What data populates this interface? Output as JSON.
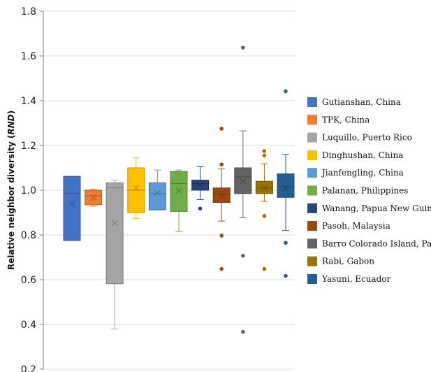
{
  "chart_data": {
    "type": "box",
    "ylabel": "Relative neighbor diversity (RND)",
    "ylabel_plain": "Relative neighbor diversity (",
    "ylabel_italic": "RND",
    "ylabel_close": ")",
    "ylim": [
      0.2,
      1.8
    ],
    "yticks": [
      "0.2",
      "0.4",
      "0.6",
      "0.8",
      "1.0",
      "1.2",
      "1.4",
      "1.6",
      "1.8"
    ],
    "grid": true,
    "legend_position": "right",
    "series": [
      {
        "name": "Gutianshan, China",
        "color": "#4472C4",
        "q1": 0.775,
        "median": 0.985,
        "q3": 1.062,
        "mean": 0.94,
        "whisker_low": 0.775,
        "whisker_high": 1.062,
        "outliers": []
      },
      {
        "name": "TPK, China",
        "color": "#ED7D31",
        "q1": 0.935,
        "median": 0.975,
        "q3": 1.0,
        "mean": 0.967,
        "whisker_low": 0.928,
        "whisker_high": 1.005,
        "outliers": []
      },
      {
        "name": "Luquillo, Puerto Rico",
        "color": "#A5A5A5",
        "q1": 0.582,
        "median": 1.01,
        "q3": 1.033,
        "mean": 0.853,
        "whisker_low": 0.38,
        "whisker_high": 1.045,
        "outliers": []
      },
      {
        "name": "Dinghushan, China",
        "color": "#FFC000",
        "q1": 0.9,
        "median": 1.0,
        "q3": 1.1,
        "mean": 1.01,
        "whisker_low": 0.873,
        "whisker_high": 1.145,
        "outliers": []
      },
      {
        "name": "Jianfengling, China",
        "color": "#5B9BD5",
        "q1": 0.912,
        "median": 0.985,
        "q3": 1.033,
        "mean": 0.988,
        "whisker_low": 0.912,
        "whisker_high": 1.09,
        "outliers": []
      },
      {
        "name": "Palanan, Philippines",
        "color": "#70AD47",
        "q1": 0.905,
        "median": 1.03,
        "q3": 1.083,
        "mean": 0.997,
        "whisker_low": 0.815,
        "whisker_high": 1.09,
        "outliers": []
      },
      {
        "name": "Wanang, Papua New Guinea",
        "color": "#264478",
        "q1": 1.0,
        "median": 1.03,
        "q3": 1.045,
        "mean": 1.025,
        "whisker_low": 0.958,
        "whisker_high": 1.105,
        "outliers": [
          0.918
        ]
      },
      {
        "name": "Pasoh, Malaysia",
        "color": "#9E480E",
        "q1": 0.945,
        "median": 0.98,
        "q3": 1.01,
        "mean": 0.977,
        "whisker_low": 0.862,
        "whisker_high": 1.095,
        "outliers": [
          1.275,
          1.115,
          0.797,
          0.648
        ]
      },
      {
        "name": "Barro Colorado Island, Panama",
        "color": "#636363",
        "q1": 0.985,
        "median": 1.06,
        "q3": 1.1,
        "mean": 1.04,
        "whisker_low": 0.878,
        "whisker_high": 1.265,
        "outliers": [
          1.637,
          0.707,
          0.367
        ]
      },
      {
        "name": "Rabi, Gabon",
        "color": "#997300",
        "q1": 0.985,
        "median": 1.01,
        "q3": 1.04,
        "mean": 1.01,
        "whisker_low": 0.95,
        "whisker_high": 1.118,
        "outliers": [
          1.175,
          1.155,
          0.885,
          0.648
        ]
      },
      {
        "name": "Yasuni, Ecuador",
        "color": "#255E91",
        "q1": 0.968,
        "median": 1.015,
        "q3": 1.073,
        "mean": 1.01,
        "whisker_low": 0.82,
        "whisker_high": 1.16,
        "outliers": [
          1.442,
          0.765,
          0.617
        ]
      }
    ]
  }
}
